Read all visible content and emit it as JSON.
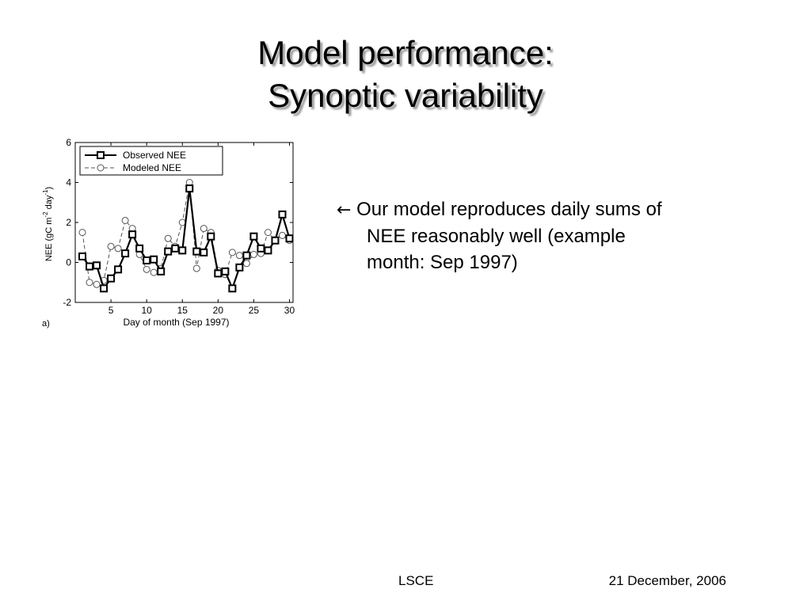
{
  "slide": {
    "title_line1": "Model performance:",
    "title_line2": "Synoptic variability",
    "bullet": {
      "arrow": "←",
      "line1": "Our model reproduces daily sums of",
      "line2": "NEE reasonably well (example",
      "line3": "month: Sep 1997)"
    },
    "footer_center": "LSCE",
    "footer_right": "21 December, 2006"
  },
  "chart_data": {
    "type": "line",
    "panel_label": "a)",
    "xlabel": "Day of month (Sep 1997)",
    "ylabel": "NEE (gC m",
    "ylabel_sup1": "-2",
    "ylabel_mid": " day",
    "ylabel_sup2": "-1",
    "ylabel_end": ")",
    "xlim": [
      0,
      30.5
    ],
    "ylim": [
      -2,
      6
    ],
    "xticks": [
      5,
      10,
      15,
      20,
      25,
      30
    ],
    "yticks": [
      -2,
      0,
      2,
      4,
      6
    ],
    "grid": false,
    "legend_position": "top-left",
    "series": [
      {
        "name": "Observed NEE",
        "style": "solid-square",
        "x": [
          1,
          2,
          3,
          4,
          5,
          6,
          7,
          8,
          9,
          10,
          11,
          12,
          13,
          14,
          15,
          16,
          17,
          18,
          19,
          20,
          21,
          22,
          23,
          24,
          25,
          26,
          27,
          28,
          29,
          30
        ],
        "values": [
          0.3,
          -0.2,
          -0.15,
          -1.3,
          -0.8,
          -0.35,
          0.45,
          1.4,
          0.7,
          0.1,
          0.15,
          -0.45,
          0.55,
          0.7,
          0.6,
          3.7,
          0.55,
          0.5,
          1.3,
          -0.55,
          -0.45,
          -1.3,
          -0.25,
          0.35,
          1.3,
          0.7,
          0.6,
          1.1,
          2.4,
          1.2
        ]
      },
      {
        "name": "Modeled NEE",
        "style": "dashed-circle",
        "x": [
          1,
          2,
          3,
          4,
          5,
          6,
          7,
          8,
          9,
          10,
          11,
          12,
          13,
          14,
          15,
          16,
          17,
          18,
          19,
          20,
          21,
          22,
          23,
          24,
          25,
          26,
          27,
          28,
          29,
          30
        ],
        "values": [
          1.5,
          -1.0,
          -1.1,
          -0.9,
          0.8,
          0.7,
          2.1,
          1.7,
          0.4,
          -0.35,
          -0.5,
          -0.3,
          1.2,
          0.8,
          2.0,
          4.0,
          -0.3,
          1.7,
          1.5,
          -0.4,
          -0.6,
          0.5,
          0.35,
          -0.05,
          0.4,
          0.45,
          1.5,
          1.1,
          1.35,
          1.1
        ]
      }
    ]
  }
}
